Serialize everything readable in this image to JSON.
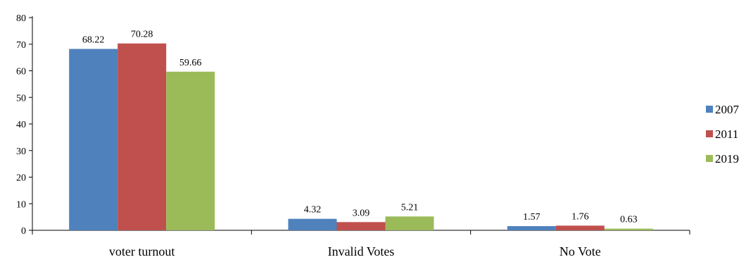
{
  "chart_data": {
    "type": "bar",
    "title": "",
    "xlabel": "",
    "ylabel": "",
    "categories": [
      "voter turnout",
      "Invalid Votes",
      "No Vote"
    ],
    "series": [
      {
        "name": "2007",
        "color": "#4F81BD",
        "values": [
          68.22,
          4.32,
          1.57
        ]
      },
      {
        "name": "2011",
        "color": "#C0504D",
        "values": [
          70.28,
          3.09,
          1.76
        ]
      },
      {
        "name": "2019",
        "color": "#9BBB59",
        "values": [
          59.66,
          5.21,
          0.63
        ]
      }
    ],
    "data_labels": [
      [
        "68.22",
        "4.32",
        "1.57"
      ],
      [
        "70.28",
        "3.09",
        "1.76"
      ],
      [
        "59.66",
        "5.21",
        "0.63"
      ]
    ],
    "ylim": [
      0,
      80
    ],
    "yticks": [
      0,
      10,
      20,
      30,
      40,
      50,
      60,
      70,
      80
    ],
    "grid": false,
    "legend_position": "right"
  }
}
